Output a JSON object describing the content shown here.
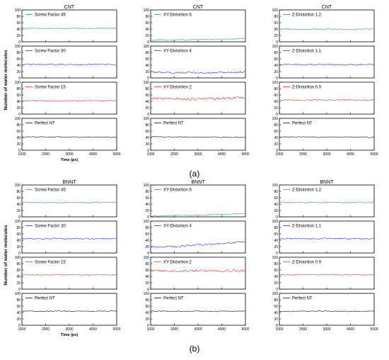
{
  "figure": {
    "panel_labels": [
      "(a)",
      "(b)"
    ]
  },
  "colors": {
    "teal": "#2e9b8a",
    "blue": "#2233dd",
    "red": "#ee3333",
    "black": "#111111"
  },
  "chart_data": [
    {
      "type": "line",
      "panel": "(a)",
      "title": "CNT",
      "xlabel": "Time (ps)",
      "ylabel": "Number of water molecules",
      "xlim": [
        1000,
        5000
      ],
      "ylim": [
        0,
        100
      ],
      "x_ticks": [
        "1000",
        "2000",
        "3000",
        "4000",
        "5000"
      ],
      "y_ticks": [
        "0",
        "20",
        "40",
        "60",
        "80",
        "100"
      ],
      "grid": false,
      "legend_position": "top-left",
      "x": [
        1000,
        2000,
        3000,
        4000,
        5000
      ],
      "series": [
        {
          "name": "Screw Factor 45",
          "color": "teal",
          "values": [
            42,
            42,
            42,
            42,
            42
          ]
        },
        {
          "name": "Screw Factor 30",
          "color": "blue",
          "values": [
            42,
            42,
            42,
            42,
            42
          ]
        },
        {
          "name": "Screw Factor 15",
          "color": "red",
          "values": [
            42,
            42,
            42,
            42,
            42
          ]
        },
        {
          "name": "Perfect NT",
          "color": "black",
          "values": [
            42,
            42,
            41,
            41,
            41
          ]
        }
      ]
    },
    {
      "type": "line",
      "panel": "(a)",
      "title": "CNT",
      "xlabel": "",
      "ylabel": "",
      "xlim": [
        1000,
        5000
      ],
      "ylim": [
        0,
        100
      ],
      "x_ticks": [
        "1000",
        "2000",
        "3000",
        "4000",
        "5000"
      ],
      "y_ticks": [
        "0",
        "20",
        "40",
        "60",
        "80",
        "100"
      ],
      "grid": false,
      "legend_position": "top-left",
      "x": [
        1000,
        2000,
        3000,
        4000,
        5000
      ],
      "series": [
        {
          "name": "XY-Distortion 6",
          "color": "teal",
          "values": [
            5,
            6,
            7,
            8,
            10
          ]
        },
        {
          "name": "XY-Distortion 4",
          "color": "blue",
          "values": [
            18,
            17,
            16,
            17,
            19
          ]
        },
        {
          "name": "XY-Distortion 2",
          "color": "red",
          "values": [
            50,
            48,
            47,
            49,
            52
          ]
        },
        {
          "name": "Perfect NT",
          "color": "black",
          "values": [
            42,
            42,
            41,
            41,
            41
          ]
        }
      ]
    },
    {
      "type": "line",
      "panel": "(a)",
      "title": "CNT",
      "xlabel": "",
      "ylabel": "",
      "xlim": [
        1000,
        5000
      ],
      "ylim": [
        0,
        100
      ],
      "x_ticks": [
        "1000",
        "2000",
        "3000",
        "4000",
        "5000"
      ],
      "y_ticks": [
        "0",
        "20",
        "40",
        "60",
        "80",
        "100"
      ],
      "grid": false,
      "legend_position": "top-left",
      "x": [
        1000,
        2000,
        3000,
        4000,
        5000
      ],
      "series": [
        {
          "name": "Z-Distortion 1.2",
          "color": "teal",
          "values": [
            40,
            39,
            40,
            39,
            40
          ]
        },
        {
          "name": "Z-Distortion 1.1",
          "color": "blue",
          "values": [
            42,
            42,
            42,
            42,
            42
          ]
        },
        {
          "name": "Z-Distortion 0.9",
          "color": "red",
          "values": [
            44,
            44,
            44,
            44,
            44
          ]
        },
        {
          "name": "Perfect NT",
          "color": "black",
          "values": [
            42,
            42,
            41,
            41,
            41
          ]
        }
      ]
    },
    {
      "type": "line",
      "panel": "(b)",
      "title": "BNNT",
      "xlabel": "Time (ps)",
      "ylabel": "Number of water molecules",
      "xlim": [
        1000,
        5000
      ],
      "ylim": [
        0,
        100
      ],
      "x_ticks": [
        "1000",
        "2000",
        "3000",
        "4000",
        "5000"
      ],
      "y_ticks": [
        "0",
        "20",
        "40",
        "60",
        "80",
        "100"
      ],
      "grid": false,
      "legend_position": "top-left",
      "x": [
        1000,
        2000,
        3000,
        4000,
        5000
      ],
      "series": [
        {
          "name": "Screw Factor 45",
          "color": "teal",
          "values": [
            45,
            45,
            45,
            45,
            45
          ]
        },
        {
          "name": "Screw Factor 30",
          "color": "blue",
          "values": [
            45,
            45,
            45,
            45,
            45
          ]
        },
        {
          "name": "Screw Factor 15",
          "color": "red",
          "values": [
            45,
            45,
            45,
            45,
            45
          ]
        },
        {
          "name": "Perfect NT",
          "color": "black",
          "values": [
            44,
            44,
            44,
            44,
            44
          ]
        }
      ]
    },
    {
      "type": "line",
      "panel": "(b)",
      "title": "BNNT",
      "xlabel": "",
      "ylabel": "",
      "xlim": [
        1000,
        5000
      ],
      "ylim": [
        0,
        100
      ],
      "x_ticks": [
        "1000",
        "2000",
        "3000",
        "4000",
        "5000"
      ],
      "y_ticks": [
        "0",
        "20",
        "40",
        "60",
        "80",
        "100"
      ],
      "grid": false,
      "legend_position": "top-left",
      "x": [
        1000,
        2000,
        3000,
        4000,
        5000
      ],
      "series": [
        {
          "name": "XY-Distortion 6",
          "color": "teal",
          "values": [
            3,
            4,
            5,
            7,
            10
          ]
        },
        {
          "name": "XY-Distortion 4",
          "color": "blue",
          "values": [
            20,
            20,
            25,
            30,
            35
          ]
        },
        {
          "name": "XY-Distortion 2",
          "color": "red",
          "values": [
            58,
            57,
            58,
            58,
            58
          ]
        },
        {
          "name": "Perfect NT",
          "color": "black",
          "values": [
            44,
            44,
            44,
            44,
            44
          ]
        }
      ]
    },
    {
      "type": "line",
      "panel": "(b)",
      "title": "BNNT",
      "xlabel": "",
      "ylabel": "",
      "xlim": [
        1000,
        5000
      ],
      "ylim": [
        0,
        100
      ],
      "x_ticks": [
        "1000",
        "2000",
        "3000",
        "4000",
        "5000"
      ],
      "y_ticks": [
        "0",
        "20",
        "40",
        "60",
        "80",
        "100"
      ],
      "grid": false,
      "legend_position": "top-left",
      "x": [
        1000,
        2000,
        3000,
        4000,
        5000
      ],
      "series": [
        {
          "name": "Z-Distortion 1.2",
          "color": "teal",
          "values": [
            45,
            45,
            45,
            45,
            45
          ]
        },
        {
          "name": "Z-Distortion 1.1",
          "color": "blue",
          "values": [
            45,
            45,
            45,
            45,
            45
          ]
        },
        {
          "name": "Z-Distortion 0.9",
          "color": "red",
          "values": [
            45,
            45,
            45,
            45,
            45
          ]
        },
        {
          "name": "Perfect NT",
          "color": "black",
          "values": [
            44,
            44,
            44,
            44,
            44
          ]
        }
      ]
    }
  ]
}
